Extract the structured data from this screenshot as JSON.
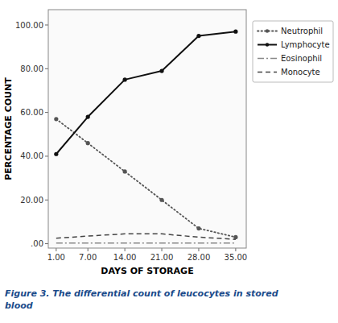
{
  "chart_data": {
    "type": "line",
    "xlabel": "DAYS OF STORAGE",
    "ylabel": "PERCENTAGE COUNT",
    "caption": [
      "Figure 3. The differential count of leucocytes in stored",
      "blood"
    ],
    "x": [
      1,
      7,
      14,
      21,
      28,
      35
    ],
    "series": [
      {
        "name": "Neutrophil",
        "color": "#555555",
        "line_style": "dotted",
        "marker": "dot",
        "values": [
          57,
          46,
          33,
          20,
          7,
          3
        ]
      },
      {
        "name": "Lymphocyte",
        "color": "#111111",
        "line_style": "solid",
        "marker": "dot",
        "values": [
          41,
          58,
          75,
          79,
          95,
          97
        ]
      },
      {
        "name": "Eosinophil",
        "color": "#888888",
        "line_style": "dashdot",
        "marker": "none",
        "values": [
          0.3,
          0.3,
          0.3,
          0.3,
          0.3,
          0.3
        ]
      },
      {
        "name": "Monocyte",
        "color": "#444444",
        "line_style": "dashed",
        "marker": "none",
        "values": [
          2.5,
          3.5,
          4.5,
          4.5,
          3.0,
          2.0
        ]
      }
    ],
    "xlim": [
      -0.5,
      37
    ],
    "ylim": [
      -2,
      107
    ],
    "xticks": [
      {
        "value": 1,
        "label": "1.00"
      },
      {
        "value": 7,
        "label": "7.00"
      },
      {
        "value": 14,
        "label": "14.00"
      },
      {
        "value": 21,
        "label": "21.00"
      },
      {
        "value": 28,
        "label": "28.00"
      },
      {
        "value": 35,
        "label": "35.00"
      }
    ],
    "yticks": [
      {
        "value": 0,
        "label": ".00"
      },
      {
        "value": 20,
        "label": "20.00"
      },
      {
        "value": 40,
        "label": "40.00"
      },
      {
        "value": 60,
        "label": "60.00"
      },
      {
        "value": 80,
        "label": "80.00"
      },
      {
        "value": 100,
        "label": "100.00"
      }
    ],
    "grid": false,
    "legend": "right"
  }
}
